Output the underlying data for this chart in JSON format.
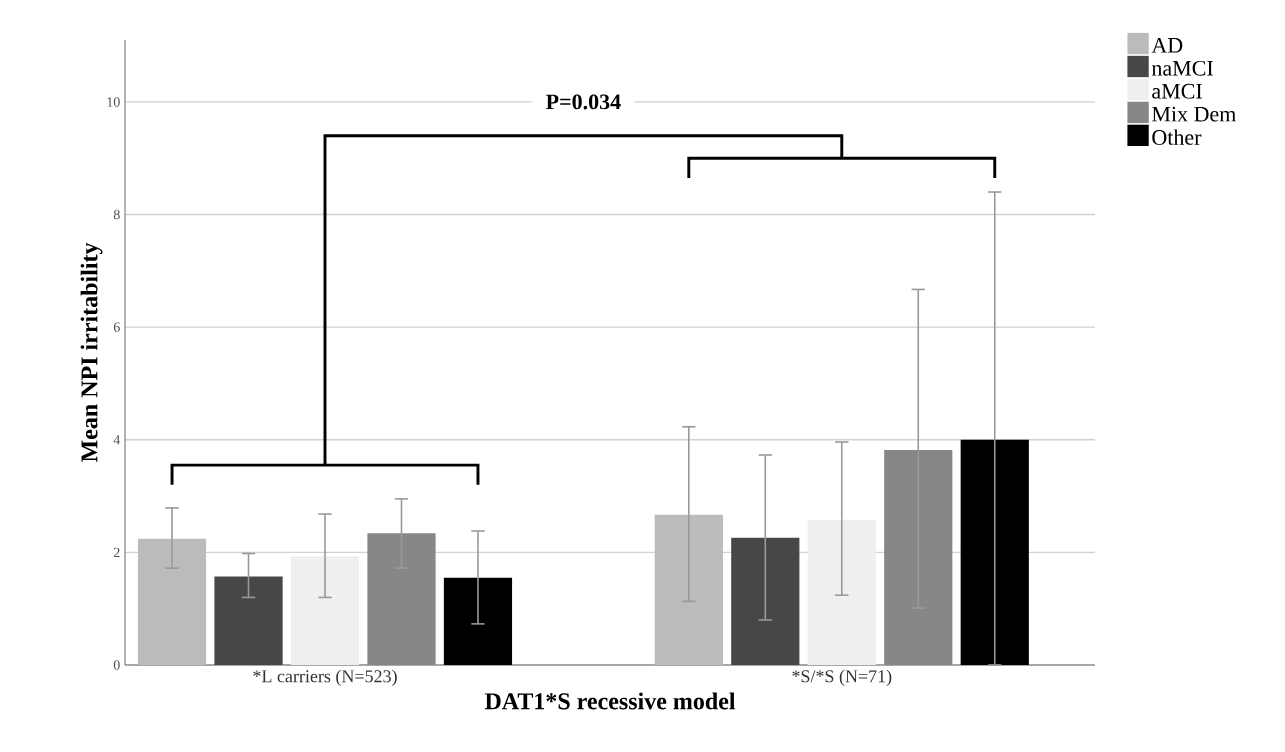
{
  "chart_data": {
    "type": "bar",
    "xlabel": "DAT1*S recessive model",
    "ylabel": "Mean NPI irritability",
    "categories": [
      "*L carriers (N=523)",
      "*S/*S (N=71)"
    ],
    "series": [
      {
        "name": "AD",
        "color": "#bbbbbb",
        "values": [
          2.24,
          2.67
        ],
        "errors": [
          [
            1.72,
            2.79
          ],
          [
            1.13,
            4.23
          ]
        ]
      },
      {
        "name": "naMCI",
        "color": "#474747",
        "values": [
          1.57,
          2.26
        ],
        "errors": [
          [
            1.2,
            1.98
          ],
          [
            0.8,
            3.73
          ]
        ]
      },
      {
        "name": "aMCI",
        "color": "#efefef",
        "values": [
          1.93,
          2.58
        ],
        "errors": [
          [
            1.2,
            2.68
          ],
          [
            1.24,
            3.96
          ]
        ]
      },
      {
        "name": "Mix Dem",
        "color": "#878787",
        "values": [
          2.34,
          3.82
        ],
        "errors": [
          [
            1.72,
            2.95
          ],
          [
            1.01,
            6.67
          ]
        ]
      },
      {
        "name": "Other",
        "color": "#000000",
        "values": [
          1.55,
          4.0
        ],
        "errors": [
          [
            0.73,
            2.38
          ],
          [
            0,
            8.4
          ]
        ]
      }
    ],
    "ylim": [
      0,
      11.1
    ],
    "yticks": [
      0,
      2,
      4,
      6,
      8,
      10
    ],
    "grid": "y",
    "legend": "top right",
    "annotations": [
      "P=0.034"
    ]
  }
}
